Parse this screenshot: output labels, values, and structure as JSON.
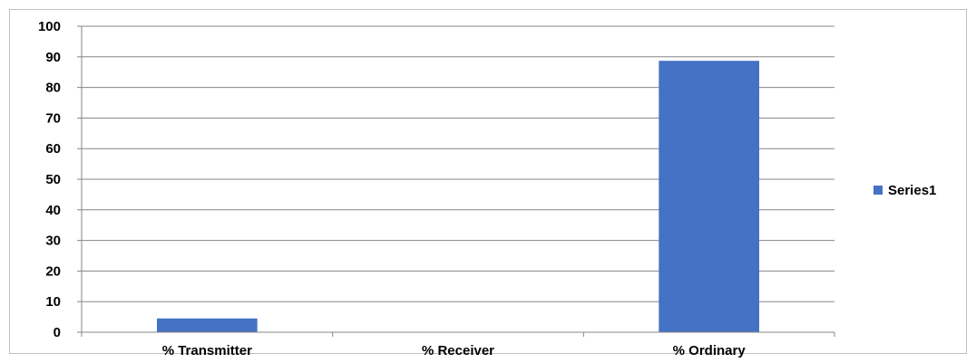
{
  "chart_data": {
    "type": "bar",
    "title": "",
    "xlabel": "",
    "ylabel": "",
    "categories": [
      "% Transmitter",
      "% Receiver",
      "% Ordinary"
    ],
    "series": [
      {
        "name": "Series1",
        "values": [
          4.5,
          0,
          88.7
        ],
        "color": "#4472c4"
      }
    ],
    "ylim": [
      0,
      100
    ],
    "yticks": [
      0,
      10,
      20,
      30,
      40,
      50,
      60,
      70,
      80,
      90,
      100
    ],
    "grid": true,
    "legend_position": "right"
  }
}
